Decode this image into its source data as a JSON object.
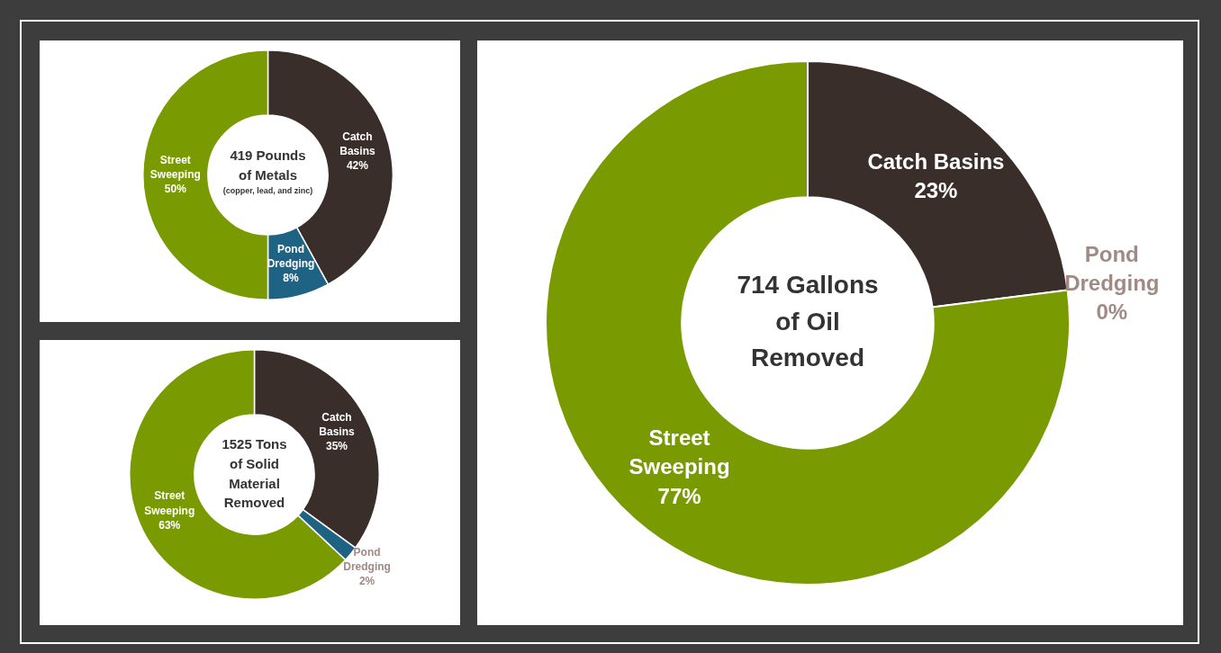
{
  "chart_data": [
    {
      "type": "donut",
      "title": "419 Pounds of Metals",
      "subtitle": "(copper, lead, and zinc)",
      "categories": [
        "Catch Basins",
        "Pond Dredging",
        "Street Sweeping"
      ],
      "values": [
        42,
        8,
        50
      ],
      "colors": [
        "#3a2e2b",
        "#1f6384",
        "#7a9a01"
      ],
      "value_labels": [
        "42%",
        "8%",
        "50%"
      ]
    },
    {
      "type": "donut",
      "title": "714 Gallons of Oil Removed",
      "categories": [
        "Catch Basins",
        "Pond Dredging",
        "Street Sweeping"
      ],
      "values": [
        23,
        0,
        77
      ],
      "colors": [
        "#3a2e2b",
        "#1f6384",
        "#7a9a01"
      ],
      "value_labels": [
        "23%",
        "0%",
        "77%"
      ]
    },
    {
      "type": "donut",
      "title": "1525 Tons of Solid Material Removed",
      "categories": [
        "Catch Basins",
        "Pond Dredging",
        "Street Sweeping"
      ],
      "values": [
        35,
        2,
        63
      ],
      "colors": [
        "#3a2e2b",
        "#1f6384",
        "#7a9a01"
      ],
      "value_labels": [
        "35%",
        "2%",
        "63%"
      ]
    }
  ]
}
